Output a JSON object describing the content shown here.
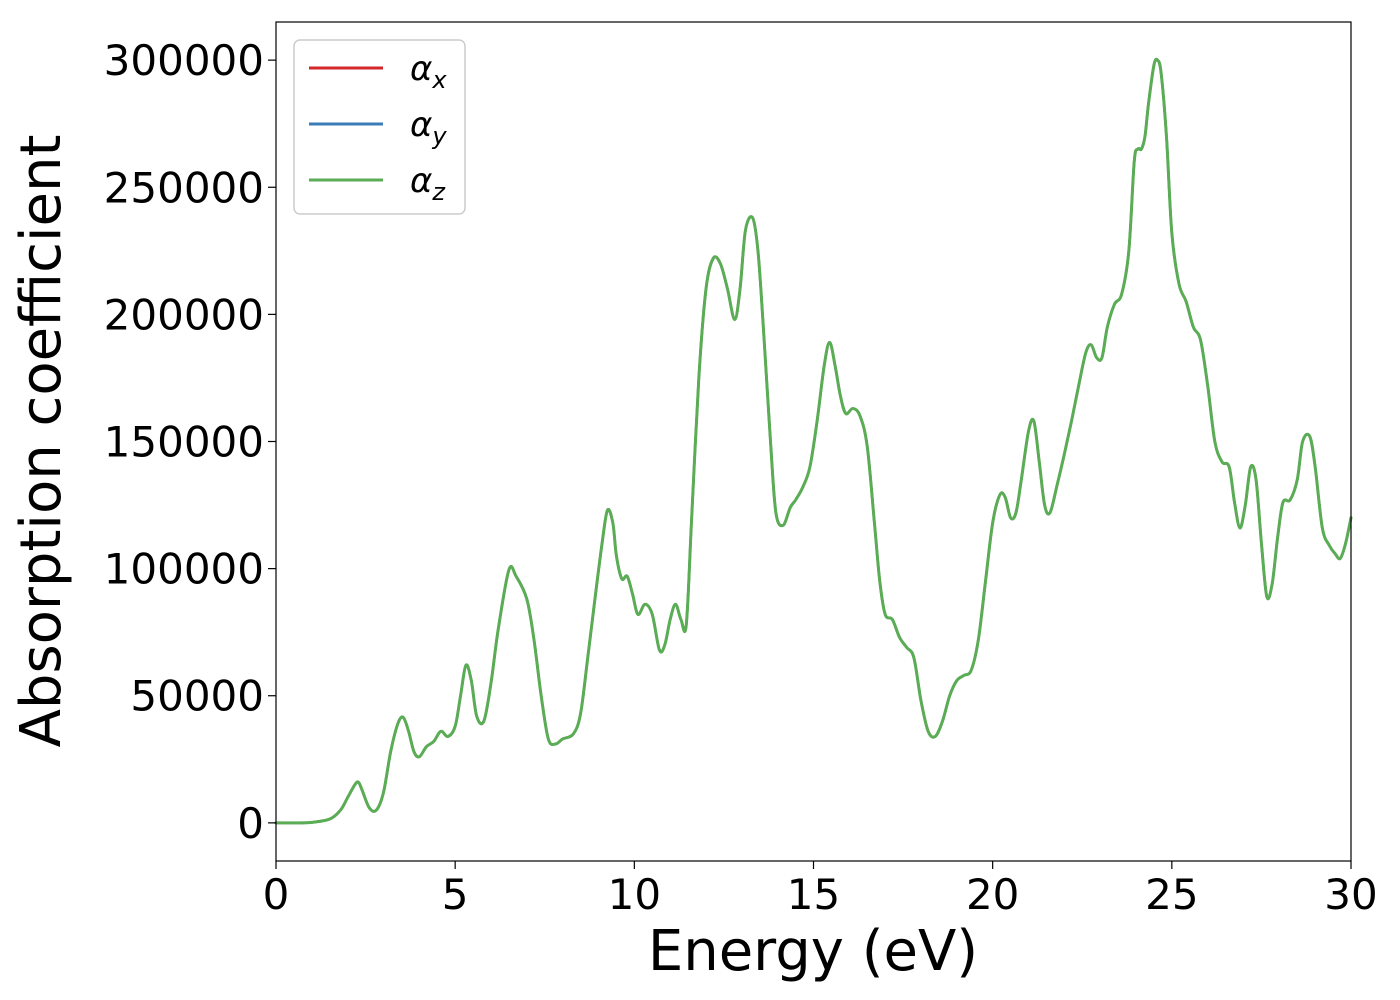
{
  "chart_data": {
    "type": "line",
    "xlabel": "Energy (eV)",
    "ylabel": "Absorption coefficient",
    "xlim": [
      0,
      30
    ],
    "ylim": [
      -15000,
      315000
    ],
    "xticks": [
      0,
      5,
      10,
      15,
      20,
      25,
      30
    ],
    "yticks": [
      0,
      50000,
      100000,
      150000,
      200000,
      250000,
      300000
    ],
    "grid": false,
    "legend_position": "top-left",
    "series": [
      {
        "name": "α",
        "sub": "x",
        "color": "#d62728",
        "linewidth": 2.5
      },
      {
        "name": "α",
        "sub": "y",
        "color": "#3a7cb8",
        "linewidth": 2.5
      },
      {
        "name": "α",
        "sub": "z",
        "color": "#5aac55",
        "linewidth": 3
      }
    ],
    "x": [
      0,
      0.5,
      1.0,
      1.5,
      1.8,
      2.0,
      2.2,
      2.3,
      2.4,
      2.6,
      2.8,
      3.0,
      3.2,
      3.4,
      3.55,
      3.7,
      3.85,
      4.0,
      4.2,
      4.4,
      4.6,
      4.8,
      5.0,
      5.15,
      5.3,
      5.45,
      5.6,
      5.8,
      6.0,
      6.2,
      6.5,
      6.7,
      7.0,
      7.2,
      7.4,
      7.6,
      7.8,
      8.0,
      8.3,
      8.5,
      8.7,
      8.9,
      9.1,
      9.25,
      9.4,
      9.5,
      9.65,
      9.8,
      9.95,
      10.1,
      10.3,
      10.5,
      10.7,
      10.85,
      11.0,
      11.15,
      11.3,
      11.45,
      11.6,
      11.8,
      12.0,
      12.2,
      12.4,
      12.6,
      12.8,
      12.95,
      13.1,
      13.3,
      13.45,
      13.6,
      13.8,
      13.95,
      14.15,
      14.35,
      14.5,
      14.7,
      14.9,
      15.1,
      15.3,
      15.45,
      15.6,
      15.75,
      15.9,
      16.1,
      16.3,
      16.5,
      16.7,
      16.85,
      17.0,
      17.2,
      17.4,
      17.6,
      17.8,
      18.0,
      18.2,
      18.4,
      18.6,
      18.8,
      19.0,
      19.2,
      19.4,
      19.6,
      19.8,
      20.0,
      20.2,
      20.35,
      20.5,
      20.65,
      20.8,
      21.0,
      21.15,
      21.3,
      21.45,
      21.6,
      21.8,
      22.0,
      22.2,
      22.4,
      22.6,
      22.75,
      22.9,
      23.05,
      23.2,
      23.4,
      23.6,
      23.8,
      23.95,
      24.05,
      24.15,
      24.25,
      24.35,
      24.5,
      24.6,
      24.7,
      24.85,
      25.0,
      25.2,
      25.4,
      25.6,
      25.8,
      26.0,
      26.2,
      26.4,
      26.6,
      26.75,
      26.9,
      27.05,
      27.2,
      27.35,
      27.5,
      27.65,
      27.8,
      27.95,
      28.1,
      28.3,
      28.5,
      28.65,
      28.85,
      29.0,
      29.2,
      29.4,
      29.55,
      29.7,
      29.85,
      30.0
    ],
    "y": [
      0,
      0,
      200,
      1500,
      5000,
      10000,
      15000,
      16000,
      13000,
      6000,
      5000,
      12000,
      28000,
      39000,
      41500,
      36000,
      28000,
      26000,
      30000,
      32000,
      36000,
      34000,
      38000,
      50000,
      62000,
      56000,
      42000,
      40000,
      55000,
      76000,
      99500,
      97000,
      88000,
      72000,
      50000,
      33000,
      31000,
      33000,
      35000,
      43000,
      65000,
      88000,
      110000,
      123000,
      118000,
      105000,
      96000,
      97000,
      90000,
      82000,
      86000,
      82000,
      68000,
      70000,
      80000,
      86000,
      80000,
      78000,
      120000,
      175000,
      210000,
      222000,
      220000,
      210000,
      198000,
      210000,
      233000,
      238000,
      225000,
      195000,
      150000,
      122000,
      117000,
      124000,
      127000,
      132000,
      140000,
      158000,
      180000,
      189000,
      180000,
      168000,
      161000,
      163000,
      160000,
      148000,
      118000,
      95000,
      82000,
      80000,
      73000,
      69000,
      65000,
      48000,
      36000,
      34000,
      40000,
      50000,
      56000,
      58000,
      60000,
      72000,
      95000,
      118000,
      129000,
      128000,
      120000,
      122000,
      135000,
      154000,
      158000,
      142000,
      125000,
      122000,
      133000,
      145000,
      158000,
      172000,
      185000,
      188000,
      183000,
      183000,
      195000,
      204000,
      208000,
      225000,
      260000,
      265000,
      265000,
      270000,
      283000,
      298000,
      300000,
      295000,
      270000,
      232000,
      212000,
      205000,
      195000,
      190000,
      172000,
      150000,
      142000,
      140000,
      126000,
      116000,
      125000,
      140000,
      135000,
      110000,
      89000,
      94000,
      112000,
      126000,
      127000,
      135000,
      150000,
      152000,
      140000,
      116000,
      109000,
      106000,
      104000,
      110000,
      120000
    ]
  }
}
